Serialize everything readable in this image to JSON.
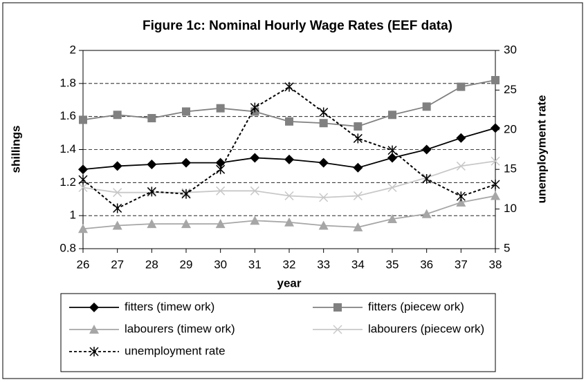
{
  "chart_data": {
    "type": "line",
    "title": "Figure 1c:   Nominal Hourly Wage Rates (EEF data)",
    "xlabel": "year",
    "ylabel": "shillings",
    "y2label": "unemployment rate",
    "x": [
      26,
      27,
      28,
      29,
      30,
      31,
      32,
      33,
      34,
      35,
      36,
      37,
      38
    ],
    "xlim": [
      26,
      38
    ],
    "xticks": [
      26,
      27,
      28,
      29,
      30,
      31,
      32,
      33,
      34,
      35,
      36,
      37,
      38
    ],
    "ylim": [
      0.8,
      2
    ],
    "yticks": [
      0.8,
      1,
      1.2,
      1.4,
      1.6,
      1.8,
      2
    ],
    "y2lim": [
      5,
      30
    ],
    "y2ticks": [
      5,
      10,
      15,
      20,
      25,
      30
    ],
    "grid": true,
    "legend": "bottom",
    "series": [
      {
        "name": "fitters (timew ork)",
        "color": "#000000",
        "marker": "diamond",
        "dashed": false,
        "values": [
          1.28,
          1.3,
          1.31,
          1.32,
          1.32,
          1.35,
          1.34,
          1.32,
          1.29,
          1.35,
          1.4,
          1.47,
          1.53
        ]
      },
      {
        "name": "fitters (piecew ork)",
        "color": "#808080",
        "marker": "square",
        "dashed": false,
        "values": [
          1.58,
          1.61,
          1.59,
          1.63,
          1.65,
          1.63,
          1.57,
          1.56,
          1.54,
          1.61,
          1.66,
          1.78,
          1.82
        ]
      },
      {
        "name": "labourers (timew ork)",
        "color": "#a6a6a6",
        "marker": "triangle",
        "dashed": false,
        "values": [
          0.92,
          0.94,
          0.95,
          0.95,
          0.95,
          0.97,
          0.96,
          0.94,
          0.93,
          0.98,
          1.01,
          1.08,
          1.12
        ]
      },
      {
        "name": "labourers (piecew ork)",
        "color": "#c8c8c8",
        "marker": "x",
        "dashed": false,
        "values": [
          1.17,
          1.14,
          1.14,
          1.14,
          1.15,
          1.15,
          1.12,
          1.11,
          1.12,
          1.17,
          1.23,
          1.3,
          1.33
        ]
      },
      {
        "name": "unemployment rate",
        "color": "#000000",
        "marker": "star",
        "dashed": true,
        "axis": "y2",
        "values": [
          13.7,
          10.1,
          12.2,
          11.9,
          15.0,
          22.8,
          25.4,
          22.2,
          18.9,
          17.4,
          13.8,
          11.6,
          13.1
        ]
      }
    ]
  }
}
